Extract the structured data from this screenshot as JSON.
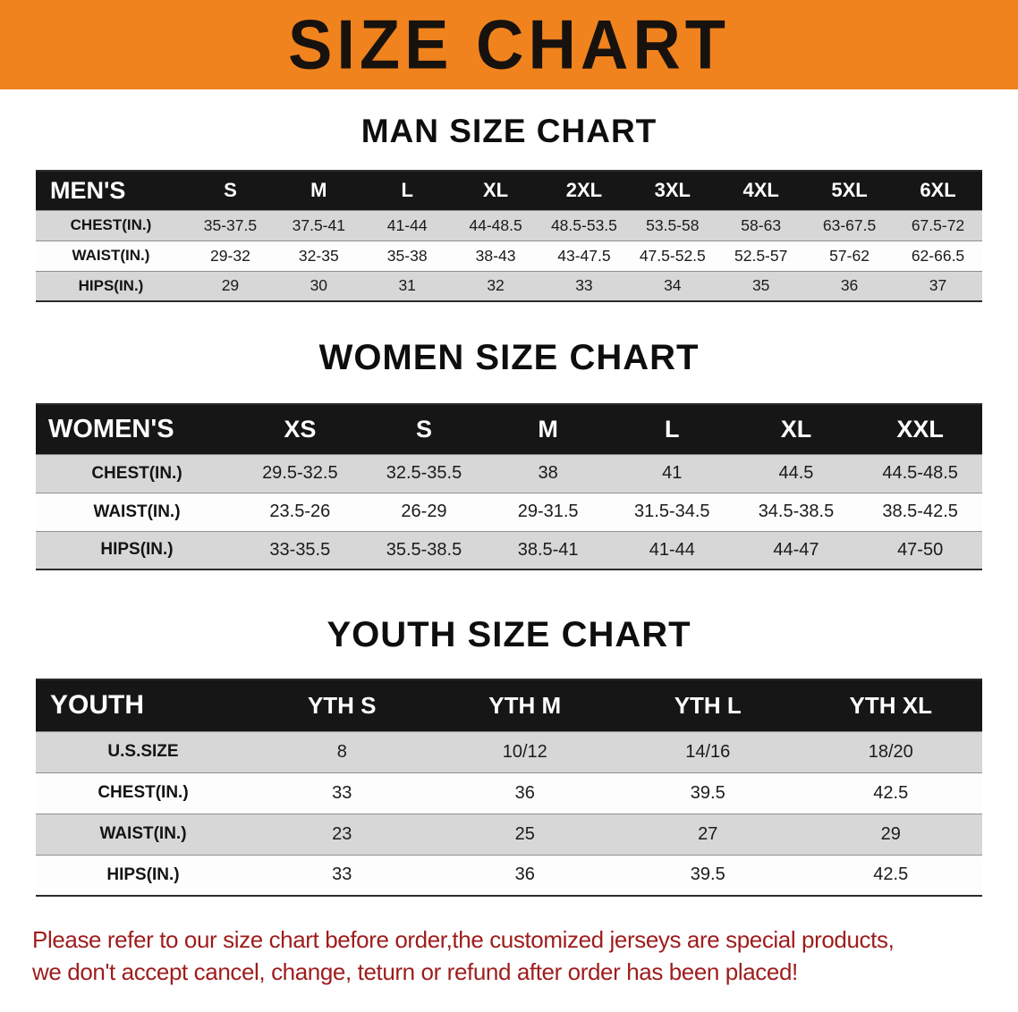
{
  "banner": {
    "title": "SIZE CHART"
  },
  "colors": {
    "banner_bg": "#F0831E",
    "header_bg": "#161616",
    "row_alt": "#d7d7d7",
    "notice_red": "#9e1c1c"
  },
  "sections": [
    {
      "id": "mens",
      "heading": "MAN SIZE CHART",
      "table": {
        "header": [
          "MEN'S",
          "S",
          "M",
          "L",
          "XL",
          "2XL",
          "3XL",
          "4XL",
          "5XL",
          "6XL"
        ],
        "rows": [
          [
            "CHEST(IN.)",
            "35-37.5",
            "37.5-41",
            "41-44",
            "44-48.5",
            "48.5-53.5",
            "53.5-58",
            "58-63",
            "63-67.5",
            "67.5-72"
          ],
          [
            "WAIST(IN.)",
            "29-32",
            "32-35",
            "35-38",
            "38-43",
            "43-47.5",
            "47.5-52.5",
            "52.5-57",
            "57-62",
            "62-66.5"
          ],
          [
            "HIPS(IN.)",
            "29",
            "30",
            "31",
            "32",
            "33",
            "34",
            "35",
            "36",
            "37"
          ]
        ]
      }
    },
    {
      "id": "womens",
      "heading": "WOMEN SIZE CHART",
      "table": {
        "header": [
          "WOMEN'S",
          "XS",
          "S",
          "M",
          "L",
          "XL",
          "XXL"
        ],
        "rows": [
          [
            "CHEST(IN.)",
            "29.5-32.5",
            "32.5-35.5",
            "38",
            "41",
            "44.5",
            "44.5-48.5"
          ],
          [
            "WAIST(IN.)",
            "23.5-26",
            "26-29",
            "29-31.5",
            "31.5-34.5",
            "34.5-38.5",
            "38.5-42.5"
          ],
          [
            "HIPS(IN.)",
            "33-35.5",
            "35.5-38.5",
            "38.5-41",
            "41-44",
            "44-47",
            "47-50"
          ]
        ]
      }
    },
    {
      "id": "youth",
      "heading": "YOUTH SIZE CHART",
      "table": {
        "header": [
          "YOUTH",
          "YTH S",
          "YTH M",
          "YTH L",
          "YTH XL"
        ],
        "rows": [
          [
            "U.S.SIZE",
            "8",
            "10/12",
            "14/16",
            "18/20"
          ],
          [
            "CHEST(IN.)",
            "33",
            "36",
            "39.5",
            "42.5"
          ],
          [
            "WAIST(IN.)",
            "23",
            "25",
            "27",
            "29"
          ],
          [
            "HIPS(IN.)",
            "33",
            "36",
            "39.5",
            "42.5"
          ]
        ]
      }
    }
  ],
  "notice": {
    "line1": "Please refer to our size chart before order,the customized jerseys are special products,",
    "line2": "we don't accept cancel, change, teturn or refund after order has been placed!"
  }
}
